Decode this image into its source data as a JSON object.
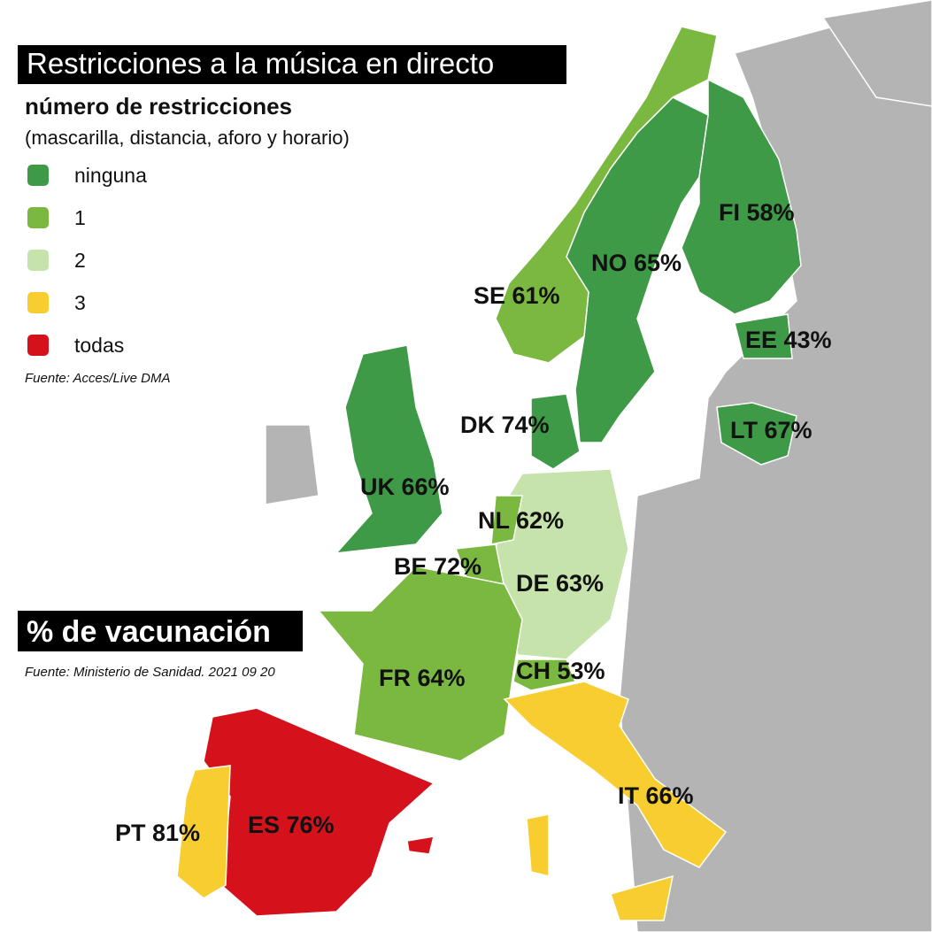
{
  "title": "Restricciones a la música en directo",
  "legend": {
    "title": "número de restricciones",
    "subtitle": "(mascarilla, distancia, aforo y horario)",
    "items": [
      {
        "label": "ninguna",
        "color": "#3e9a46"
      },
      {
        "label": "1",
        "color": "#7ab840"
      },
      {
        "label": "2",
        "color": "#c5e3aa"
      },
      {
        "label": "3",
        "color": "#f8cd2f"
      },
      {
        "label": "todas",
        "color": "#d5121c"
      }
    ],
    "source": "Fuente: Acces/Live DMA"
  },
  "vaccination": {
    "title": "% de vacunación",
    "source": "Fuente: Ministerio de Sanidad. 2021 09 20"
  },
  "countries": [
    {
      "label": "FI 58%",
      "color": "#3e9a46"
    },
    {
      "label": "NO 65%",
      "color": "#3e9a46"
    },
    {
      "label": "SE 61%",
      "color": "#7ab840"
    },
    {
      "label": "EE 43%",
      "color": "#3e9a46"
    },
    {
      "label": "LT 67%",
      "color": "#3e9a46"
    },
    {
      "label": "DK 74%",
      "color": "#3e9a46"
    },
    {
      "label": "UK 66%",
      "color": "#3e9a46"
    },
    {
      "label": "NL 62%",
      "color": "#7ab840"
    },
    {
      "label": "BE 72%",
      "color": "#7ab840"
    },
    {
      "label": "DE 63%",
      "color": "#c5e3aa"
    },
    {
      "label": "FR 64%",
      "color": "#7ab840"
    },
    {
      "label": "CH 53%",
      "color": "#7ab840"
    },
    {
      "label": "IT 66%",
      "color": "#f8cd2f"
    },
    {
      "label": "ES 76%",
      "color": "#d5121c"
    },
    {
      "label": "PT 81%",
      "color": "#f8cd2f"
    }
  ]
}
